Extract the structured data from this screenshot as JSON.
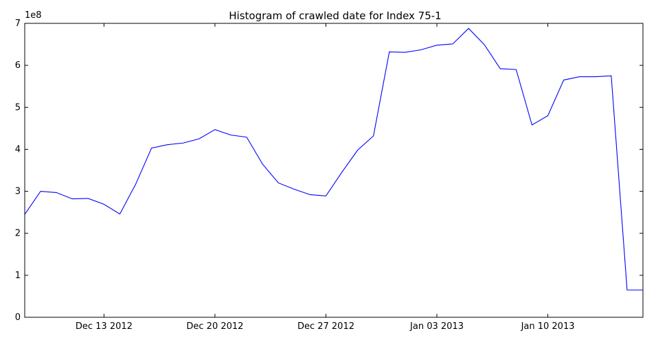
{
  "chart_data": {
    "type": "line",
    "title": "Histogram of crawled date for Index 75-1",
    "y_multiplier_label": "1e8",
    "xlabel": "",
    "ylabel": "",
    "ylim": [
      0,
      7
    ],
    "yticks": [
      0,
      1,
      2,
      3,
      4,
      5,
      6,
      7
    ],
    "x_dates": [
      "2012-12-08",
      "2013-01-16"
    ],
    "xticks": [
      {
        "date": "2012-12-13",
        "label": "Dec 13 2012"
      },
      {
        "date": "2012-12-20",
        "label": "Dec 20 2012"
      },
      {
        "date": "2012-12-27",
        "label": "Dec 27 2012"
      },
      {
        "date": "2013-01-03",
        "label": "Jan 03 2013"
      },
      {
        "date": "2013-01-10",
        "label": "Jan 10 2013"
      }
    ],
    "grid": false,
    "series": [
      {
        "color": "#0000ff",
        "x": [
          "2012-12-08",
          "2012-12-09",
          "2012-12-10",
          "2012-12-11",
          "2012-12-12",
          "2012-12-13",
          "2012-12-14",
          "2012-12-15",
          "2012-12-16",
          "2012-12-17",
          "2012-12-18",
          "2012-12-19",
          "2012-12-20",
          "2012-12-21",
          "2012-12-22",
          "2012-12-23",
          "2012-12-24",
          "2012-12-25",
          "2012-12-26",
          "2012-12-27",
          "2012-12-28",
          "2012-12-29",
          "2012-12-30",
          "2012-12-31",
          "2013-01-01",
          "2013-01-02",
          "2013-01-03",
          "2013-01-04",
          "2013-01-05",
          "2013-01-06",
          "2013-01-07",
          "2013-01-08",
          "2013-01-09",
          "2013-01-10",
          "2013-01-11",
          "2013-01-12",
          "2013-01-13",
          "2013-01-14",
          "2013-01-15",
          "2013-01-16"
        ],
        "y": [
          2.45,
          3.0,
          2.97,
          2.82,
          2.83,
          2.69,
          2.46,
          3.17,
          4.03,
          4.11,
          4.15,
          4.25,
          4.47,
          4.34,
          4.29,
          3.65,
          3.2,
          3.05,
          2.92,
          2.89,
          3.45,
          3.98,
          4.32,
          6.32,
          6.31,
          6.37,
          6.48,
          6.51,
          6.88,
          6.49,
          5.92,
          5.9,
          4.58,
          4.8,
          5.65,
          5.73,
          5.73,
          5.75,
          0.65,
          0.65
        ]
      }
    ]
  }
}
